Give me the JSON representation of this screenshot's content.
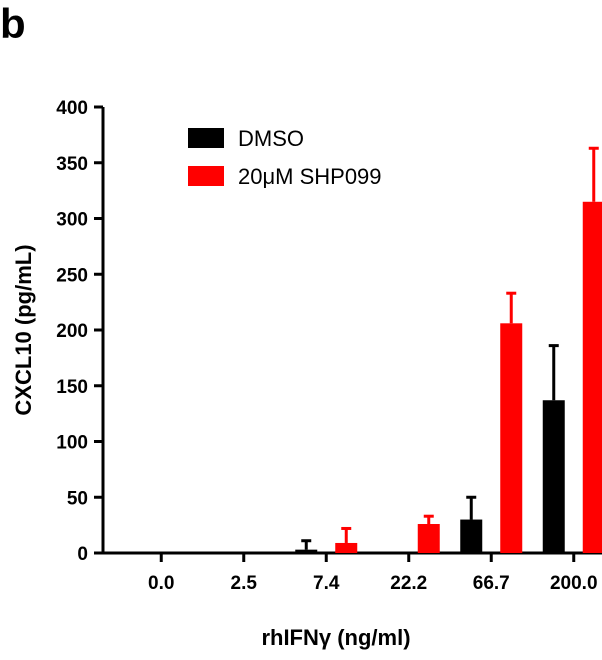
{
  "panel_label": "b",
  "chart_data": {
    "type": "bar",
    "title": "",
    "xlabel": "rhIFNγ (ng/ml)",
    "ylabel": "CXCL10 (pg/mL)",
    "categories": [
      "0.0",
      "2.5",
      "7.4",
      "22.2",
      "66.7",
      "200.0"
    ],
    "ylim": [
      0,
      400
    ],
    "yticks": [
      "0",
      "50",
      "100",
      "150",
      "200",
      "250",
      "300",
      "350",
      "400"
    ],
    "grid": false,
    "legend_position": "top-left",
    "series": [
      {
        "name": "DMSO",
        "color": "#000000",
        "values": [
          0,
          0,
          3,
          0,
          30,
          137
        ],
        "errors": [
          0,
          0,
          8,
          0,
          20,
          49
        ]
      },
      {
        "name": "20μM SHP099",
        "color": "#ff0000",
        "values": [
          0,
          0,
          9,
          26,
          206,
          315
        ],
        "errors": [
          0,
          0,
          13,
          7,
          27,
          48
        ]
      }
    ]
  }
}
